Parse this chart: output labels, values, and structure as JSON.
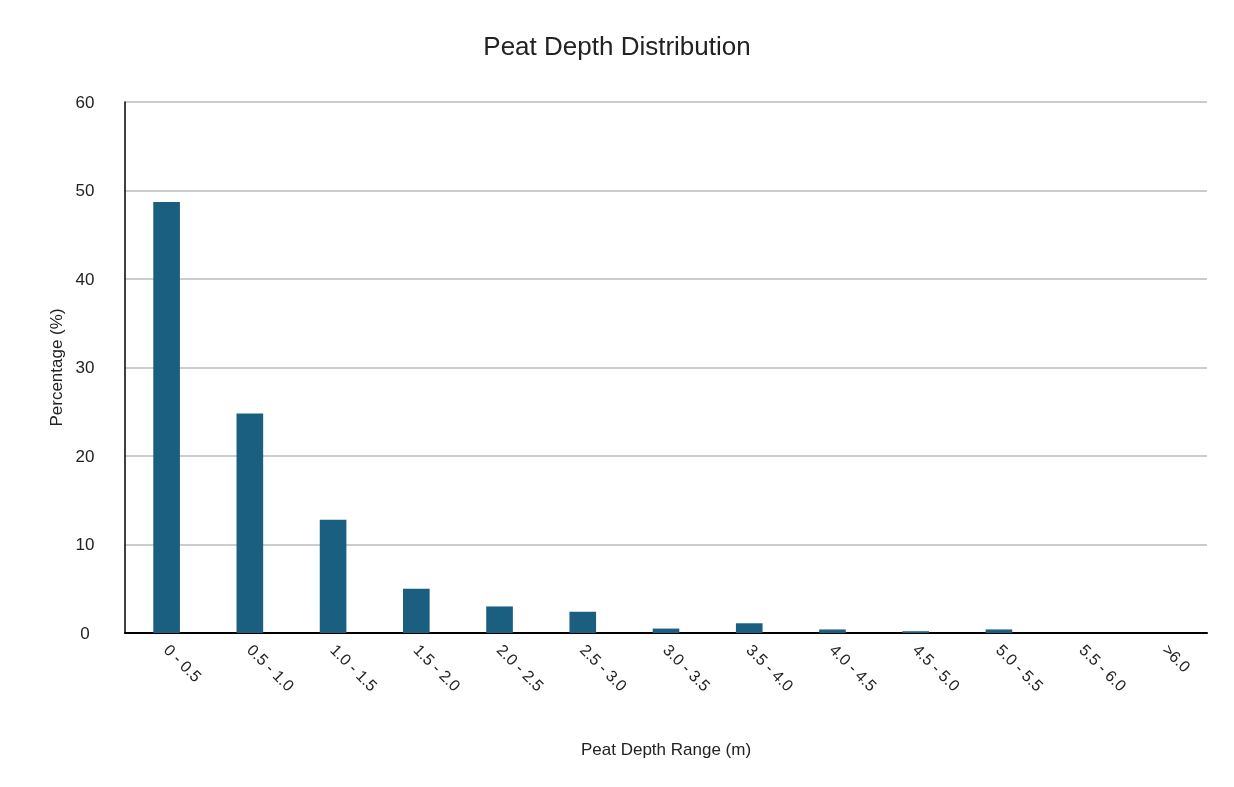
{
  "chart_data": {
    "type": "bar",
    "title": "Peat Depth Distribution",
    "xlabel": "Peat Depth Range (m)",
    "ylabel": "Percentage (%)",
    "categories": [
      "0 - 0.5",
      "0.5 - 1.0",
      "1.0 - 1.5",
      "1.5 - 2.0",
      "2.0 - 2.5",
      "2.5 - 3.0",
      "3.0 - 3.5",
      "3.5 - 4.0",
      "4.0 - 4.5",
      "4.5 - 5.0",
      "5.0 - 5.5",
      "5.5 - 6.0",
      ">6.0"
    ],
    "values": [
      48.7,
      24.8,
      12.8,
      5.0,
      3.0,
      2.4,
      0.5,
      1.1,
      0.4,
      0.2,
      0.4,
      0,
      0
    ],
    "color": "#1a5e80",
    "ylim": [
      0,
      60
    ],
    "yticks": [
      0,
      10,
      20,
      30,
      40,
      50,
      60
    ],
    "grid": "y"
  }
}
